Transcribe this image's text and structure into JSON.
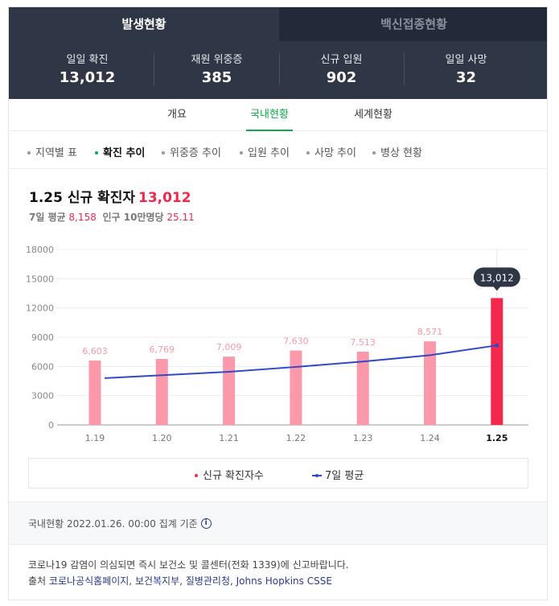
{
  "top_tabs": [
    {
      "label": "발생현황",
      "active": true
    },
    {
      "label": "백신접종현황",
      "active": false
    }
  ],
  "stats": [
    {
      "label": "일일 확진",
      "value": "13,012"
    },
    {
      "label": "재원 위중증",
      "value": "385"
    },
    {
      "label": "신규 입원",
      "value": "902"
    },
    {
      "label": "일일 사망",
      "value": "32"
    }
  ],
  "sub_tabs": [
    {
      "label": "개요",
      "active": false
    },
    {
      "label": "국내현황",
      "active": true
    },
    {
      "label": "세계현황",
      "active": false
    }
  ],
  "filters": [
    {
      "label": "지역별 표",
      "active": false
    },
    {
      "label": "확진 추이",
      "active": true
    },
    {
      "label": "위중증 추이",
      "active": false
    },
    {
      "label": "입원 추이",
      "active": false
    },
    {
      "label": "사망 추이",
      "active": false
    },
    {
      "label": "병상 현황",
      "active": false
    }
  ],
  "chart_header": {
    "title": "1.25 신규 확진자",
    "title_value": "13,012",
    "avg_label": "7일 평균",
    "avg_value": "8,158",
    "per_label": "인구 10만명당",
    "per_value": "25.11"
  },
  "chart_data": {
    "type": "bar",
    "categories": [
      "1.19",
      "1.20",
      "1.21",
      "1.22",
      "1.23",
      "1.24",
      "1.25"
    ],
    "series": [
      {
        "name": "신규 확진자수",
        "values": [
          6603,
          6769,
          7009,
          7630,
          7513,
          8571,
          13012
        ],
        "kind": "bar"
      },
      {
        "name": "7일 평균",
        "values": [
          4800,
          5100,
          5450,
          5950,
          6500,
          7150,
          8158
        ],
        "kind": "line"
      }
    ],
    "bar_labels": [
      "6,603",
      "6,769",
      "7,009",
      "7,630",
      "7,513",
      "8,571"
    ],
    "highlight_label": "13,012",
    "yticks": [
      "18000",
      "15000",
      "12000",
      "9000",
      "6000",
      "3000",
      "0"
    ],
    "ylim": [
      0,
      18000
    ],
    "grid": true,
    "legend_position": "bottom",
    "colors": {
      "bar": "#fb98a9",
      "highlight": "#f4284d",
      "line": "#2f49c7",
      "tooltip": "#2f3646"
    }
  },
  "legend": {
    "bar_label": "신규 확진자수",
    "line_label": "7일 평균"
  },
  "footer": {
    "basis": "국내현황 2022.01.26. 00:00 집계 기준",
    "notice": "코로나19 감염이 의심되면 즉시 보건소 및 콜센터(전화 1339)에 신고바랍니다.",
    "source_prefix": "출처",
    "sources": [
      "코로나공식홈페이지",
      "보건복지부",
      "질병관리청",
      "Johns Hopkins CSSE"
    ]
  }
}
